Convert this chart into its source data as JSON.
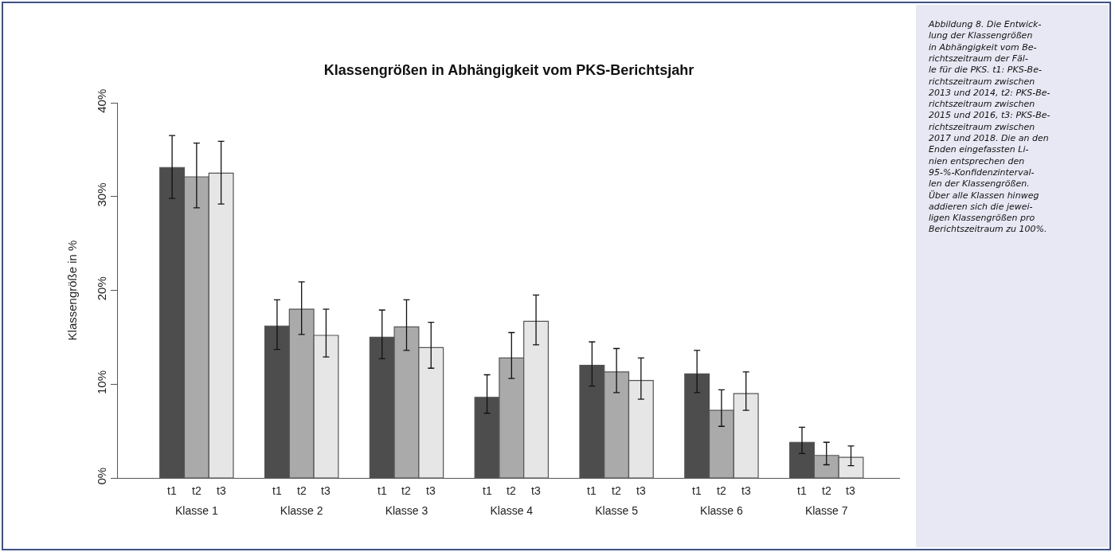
{
  "chart_data": {
    "type": "bar",
    "title": "Klassengrößen in Abhängigkeit vom PKS-Berichtsjahr",
    "ylabel": "Klassengröße in %",
    "categories": [
      "Klasse 1",
      "Klasse 2",
      "Klasse 3",
      "Klasse 4",
      "Klasse 5",
      "Klasse 6",
      "Klasse 7"
    ],
    "series": [
      {
        "name": "t1",
        "color": "#4d4d4d",
        "values": [
          33.1,
          16.2,
          15.0,
          8.6,
          12.0,
          11.1,
          3.8
        ],
        "errors": [
          [
            29.8,
            36.5
          ],
          [
            13.7,
            19.0
          ],
          [
            12.7,
            17.9
          ],
          [
            6.9,
            11.0
          ],
          [
            9.8,
            14.5
          ],
          [
            9.1,
            13.6
          ],
          [
            2.6,
            5.4
          ]
        ]
      },
      {
        "name": "t2",
        "color": "#aaaaaa",
        "values": [
          32.1,
          18.0,
          16.1,
          12.8,
          11.3,
          7.2,
          2.4
        ],
        "errors": [
          [
            28.8,
            35.7
          ],
          [
            15.3,
            20.9
          ],
          [
            13.6,
            19.0
          ],
          [
            10.6,
            15.5
          ],
          [
            9.1,
            13.8
          ],
          [
            5.5,
            9.4
          ],
          [
            1.4,
            3.8
          ]
        ]
      },
      {
        "name": "t3",
        "color": "#e6e6e6",
        "values": [
          32.5,
          15.2,
          13.9,
          16.7,
          10.4,
          9.0,
          2.2
        ],
        "errors": [
          [
            29.2,
            35.9
          ],
          [
            12.9,
            18.0
          ],
          [
            11.7,
            16.6
          ],
          [
            14.2,
            19.5
          ],
          [
            8.4,
            12.8
          ],
          [
            7.2,
            11.3
          ],
          [
            1.3,
            3.4
          ]
        ]
      }
    ],
    "ylim": [
      0,
      40
    ],
    "yticks": [
      {
        "value": 0,
        "label": "0%"
      },
      {
        "value": 10,
        "label": "10%"
      },
      {
        "value": 20,
        "label": "20%"
      },
      {
        "value": 30,
        "label": "30%"
      },
      {
        "value": 40,
        "label": "40%"
      }
    ],
    "legend": false,
    "annotations": [
      "Abbildung 8. Die Entwick-\nlung der Klassengrößen\nin Abhängigkeit vom Be-\nrichtszeitraum der Fäl-\nle für die PKS. t1: PKS-Be-\nrichtszeitraum zwischen\n2013 und 2014, t2: PKS-Be-\nrichtszeitraum zwischen\n2015 und 2016, t3: PKS-Be-\nrichtszeitraum zwischen\n2017 und 2018. Die an den\nEnden eingefassten Li-\nnien entsprechen den\n95-%-Konfidenzinterval-\nlen der Klassengrößen.\nÜber alle Klassen hinweg\naddieren sich die jewei-\nligen Klassengrößen pro\nBerichtszeitraum zu 100%."
    ]
  }
}
